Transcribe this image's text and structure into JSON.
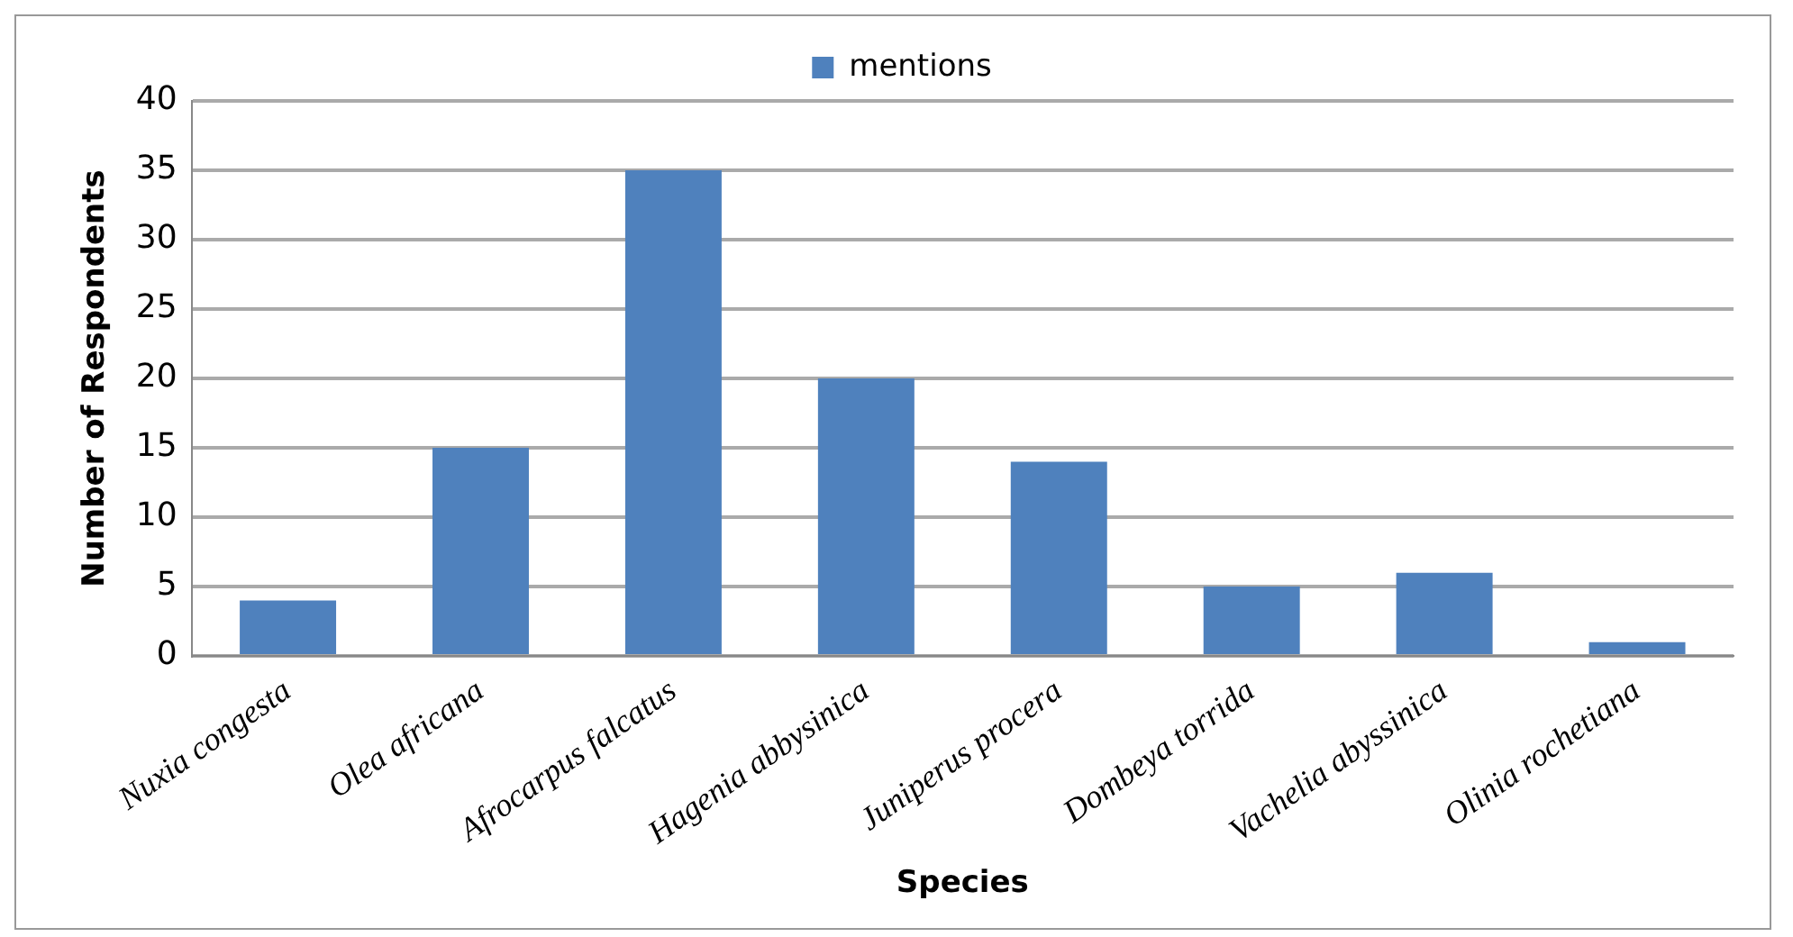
{
  "chart_data": {
    "type": "bar",
    "xlabel": "Species",
    "ylabel": "Number of Respondents",
    "categories": [
      "Nuxia congesta",
      "Olea africana",
      "Afrocarpus falcatus",
      "Hagenia abbysinica",
      "Juniperus procera",
      "Dombeya torrida",
      "Vachelia abyssinica",
      "Olinia rochetiana"
    ],
    "series": [
      {
        "name": "mentions",
        "color": "#4f81bd",
        "values": [
          4,
          15,
          35,
          20,
          14,
          5,
          6,
          1
        ]
      }
    ],
    "ylim": [
      0,
      40
    ],
    "yticks": [
      0,
      5,
      10,
      15,
      20,
      25,
      30,
      35,
      40
    ],
    "grid": "y",
    "legend": "top"
  }
}
